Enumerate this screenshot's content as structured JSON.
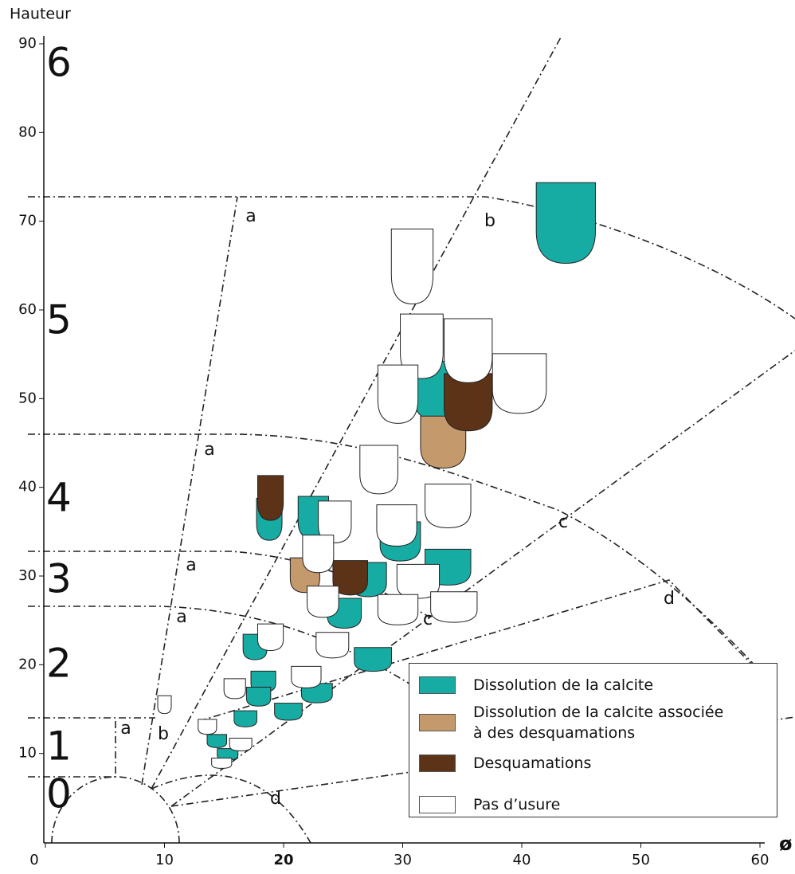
{
  "chart_data": {
    "type": "scatter",
    "y_label": "Hauteur",
    "x_label": "ø",
    "xlim": [
      0,
      60
    ],
    "ylim": [
      0,
      90
    ],
    "xticks": [
      0,
      10,
      20,
      30,
      40,
      50,
      60
    ],
    "yticks": [
      10,
      20,
      30,
      40,
      50,
      60,
      70,
      80,
      90
    ],
    "zone_labels": [
      "0",
      "1",
      "2",
      "3",
      "4",
      "5",
      "6"
    ],
    "line_labels": [
      "a",
      "b",
      "a",
      "a",
      "a",
      "c",
      "c",
      "d",
      "a",
      "b",
      "d"
    ],
    "legend": "bottom-right",
    "series": [
      {
        "name": "Dissolution de la calcite",
        "color": "#17aca3",
        "x": [
          43.7,
          32.8,
          29.8,
          18.8,
          22.5,
          27.1,
          33.8,
          25.1,
          17.6,
          27.5,
          22.8,
          18.3,
          17.9,
          16.8,
          20.4,
          14.4,
          15.3
        ],
        "values": [
          69.8,
          50.9,
          33.9,
          36.4,
          36.6,
          29.6,
          31,
          25.8,
          22,
          20.6,
          16.8,
          18.1,
          16.4,
          13.9,
          14.7,
          11.4,
          9.9
        ]
      },
      {
        "name": "Dissolution de la calcite associée à des desquamations",
        "color": "#c49a6c",
        "x": [
          33.4,
          21.8
        ],
        "values": [
          45.1,
          30.1
        ]
      },
      {
        "name": "Desquamations",
        "color": "#5c3317",
        "x": [
          35.5,
          18.9,
          25.6
        ],
        "values": [
          49.6,
          38.8,
          29.8
        ]
      },
      {
        "name": "Pas d’usure",
        "color": "#ffffff",
        "x": [
          30.8,
          31.6,
          35.5,
          39.8,
          29.6,
          28.0,
          33.8,
          29.5,
          24.3,
          22.9,
          31.3,
          29.6,
          34.3,
          23.3,
          18.9,
          24.1,
          21.9,
          15.9,
          13.6,
          16.4,
          14.8,
          10
        ],
        "values": [
          64.9,
          55.9,
          55.4,
          51.7,
          50.5,
          42,
          37.9,
          35.7,
          36.1,
          32.5,
          29.4,
          26.2,
          26.5,
          27.1,
          23.1,
          22.2,
          18.6,
          17.3,
          13,
          11,
          8.9,
          15.5
        ]
      }
    ]
  }
}
